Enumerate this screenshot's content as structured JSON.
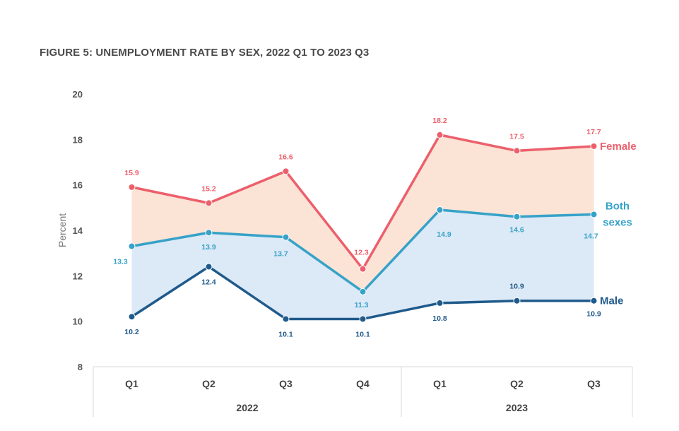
{
  "title": "FIGURE 5: UNEMPLOYMENT RATE BY SEX, 2022 Q1 TO 2023 Q3",
  "chart_data": {
    "type": "line",
    "title": "FIGURE 5: UNEMPLOYMENT RATE BY SEX, 2022 Q1 TO 2023 Q3",
    "ylabel": "Percent",
    "xlabel": "",
    "ylim": [
      8,
      20
    ],
    "yticks": [
      8,
      10,
      12,
      14,
      16,
      18,
      20
    ],
    "categories": [
      "Q1",
      "Q2",
      "Q3",
      "Q4",
      "Q1",
      "Q2",
      "Q3"
    ],
    "groups": [
      {
        "label": "2022",
        "span": 4
      },
      {
        "label": "2023",
        "span": 3
      }
    ],
    "grid": false,
    "legend": "series labels at right end of lines",
    "series": [
      {
        "name": "Female",
        "color": "#ec5f6b",
        "values": [
          15.9,
          15.2,
          16.6,
          12.3,
          18.2,
          17.5,
          17.7
        ],
        "labels": [
          "15.9",
          "15.2",
          "16.6",
          "12.3",
          "18.2",
          "17.5",
          "17.7"
        ]
      },
      {
        "name": "Both sexes",
        "color": "#36a2c8",
        "values": [
          13.3,
          13.9,
          13.7,
          11.3,
          14.9,
          14.6,
          14.7
        ],
        "labels": [
          "13.3",
          "13.9",
          "13.7",
          "11.3",
          "14.9",
          "14.6",
          "14.7"
        ]
      },
      {
        "name": "Male",
        "color": "#1f5a8b",
        "values": [
          10.2,
          12.4,
          10.1,
          10.1,
          10.8,
          10.9,
          10.9
        ],
        "labels": [
          "10.2",
          "12.4",
          "10.1",
          "10.1",
          "10.8",
          "10.9",
          "10.9"
        ]
      }
    ],
    "fills": {
      "upper": "#fbe3d6",
      "lower": "#dce9f6"
    }
  }
}
